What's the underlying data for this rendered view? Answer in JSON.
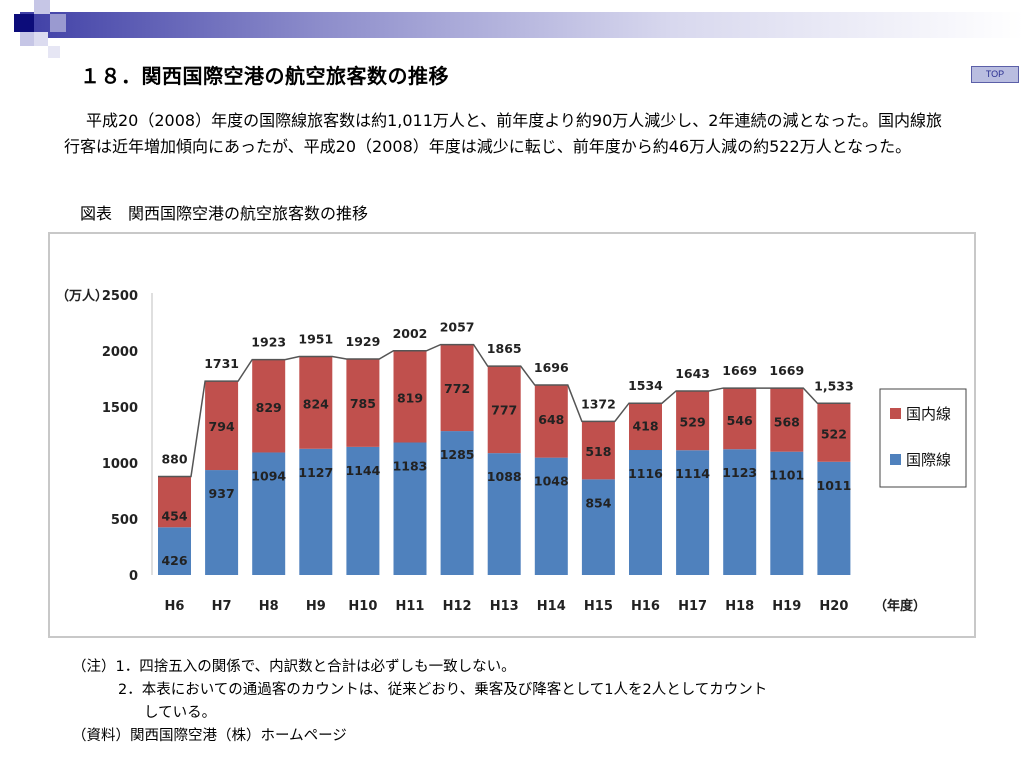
{
  "slide": {
    "title": "１８．関西国際空港の航空旅客数の推移",
    "top_link": "TOP",
    "paragraph": "平成20（2008）年度の国際線旅客数は約1,011万人と、前年度より約90万人減少し、2年連続の減となった。国内線旅行客は近年増加傾向にあったが、平成20（2008）年度は減少に転じ、前年度から約46万人減の約522万人となった。",
    "figure_label": "図表　関西国際空港の航空旅客数の推移",
    "notes": [
      "（注）1．四捨五入の関係で、内訳数と合計は必ずしも一致しない。",
      "2．本表においての通過客のカウントは、従来どおり、乗客及び降客として1人を2人としてカウント",
      "している。",
      "（資料）関西国際空港（株）ホームページ"
    ]
  },
  "chart_data": {
    "type": "bar",
    "stacked": true,
    "ylabel": "（万人）",
    "xlabel": "（年度）",
    "ylim": [
      0,
      2500
    ],
    "yticks": [
      0,
      500,
      1000,
      1500,
      2000,
      2500
    ],
    "categories": [
      "H6",
      "H7",
      "H8",
      "H9",
      "H10",
      "H11",
      "H12",
      "H13",
      "H14",
      "H15",
      "H16",
      "H17",
      "H18",
      "H19",
      "H20"
    ],
    "series": [
      {
        "name": "国際線",
        "color": "#4f81bd",
        "values": [
          426,
          937,
          1094,
          1127,
          1144,
          1183,
          1285,
          1088,
          1048,
          854,
          1116,
          1114,
          1123,
          1101,
          1011
        ]
      },
      {
        "name": "国内線",
        "color": "#c0504d",
        "values": [
          454,
          794,
          829,
          824,
          785,
          819,
          772,
          777,
          648,
          518,
          418,
          529,
          546,
          568,
          522
        ]
      }
    ],
    "totals": [
      "880",
      "1731",
      "1923",
      "1951",
      "1929",
      "2002",
      "2057",
      "1865",
      "1696",
      "1372",
      "1534",
      "1643",
      "1669",
      "1669",
      "1,533"
    ],
    "legend_position": "right",
    "grid": false
  }
}
